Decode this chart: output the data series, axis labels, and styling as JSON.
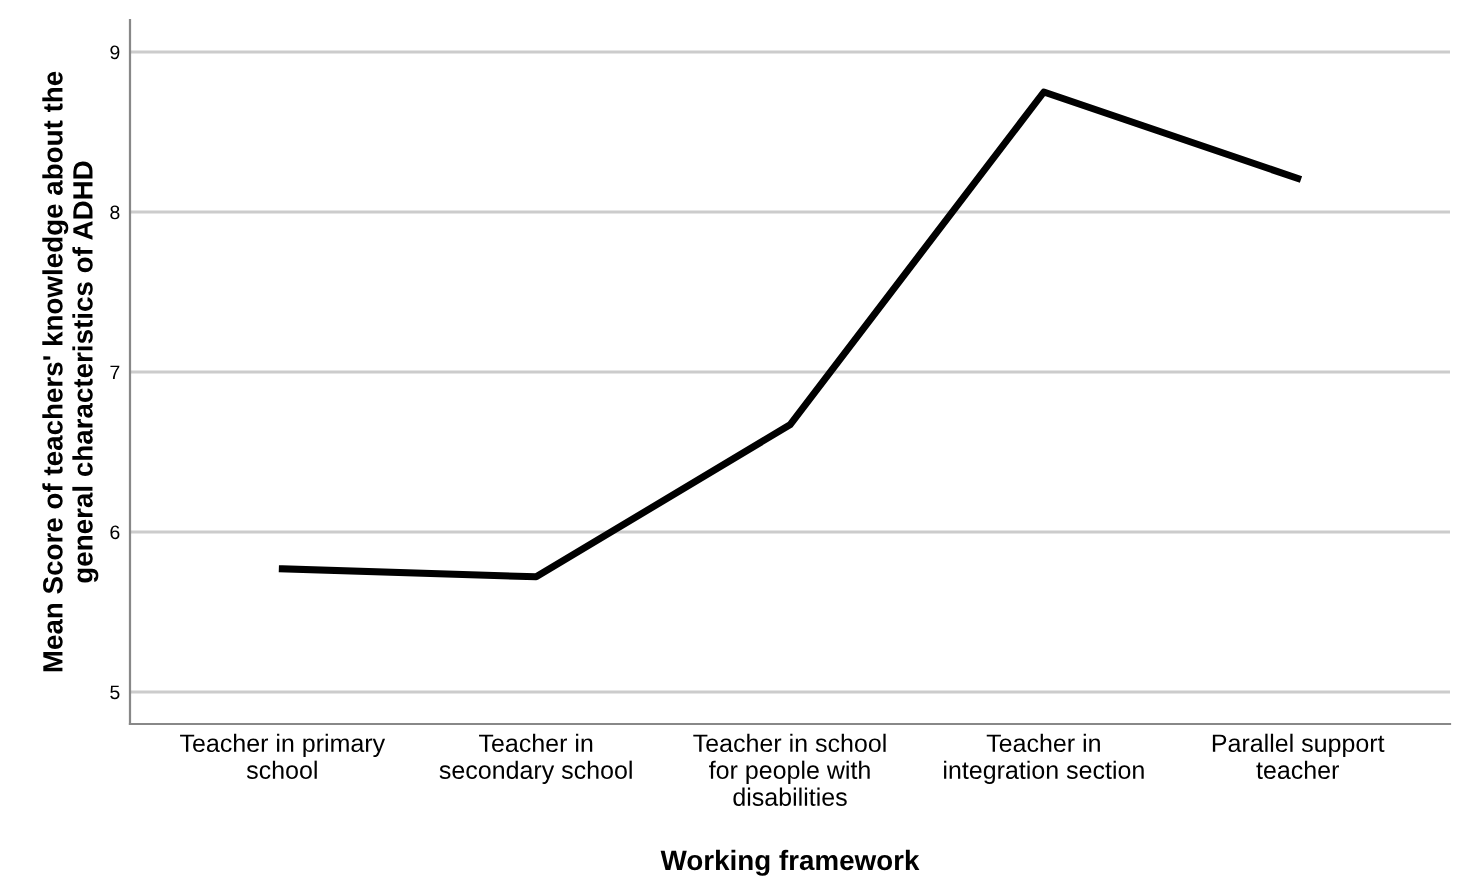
{
  "chart_data": {
    "type": "line",
    "xlabel": "Working framework",
    "ylabel": "Mean Score of teachers' knowledge about the\ngeneral characteristics of ADHD",
    "categories": [
      "Teacher in primary\nschool",
      "Teacher in\nsecondary school",
      "Teacher in school\nfor people with\ndisabilities",
      "Teacher in\nintegration section",
      "Parallel support\nteacher"
    ],
    "series": [
      {
        "color": "#000000",
        "values": [
          5.77,
          5.72,
          6.67,
          8.75,
          8.21
        ]
      }
    ],
    "ylim": [
      4.8,
      9.2
    ],
    "yticks": [
      5,
      6,
      7,
      8,
      9
    ],
    "grid": "y",
    "marker": "none",
    "line_style": "solid"
  }
}
